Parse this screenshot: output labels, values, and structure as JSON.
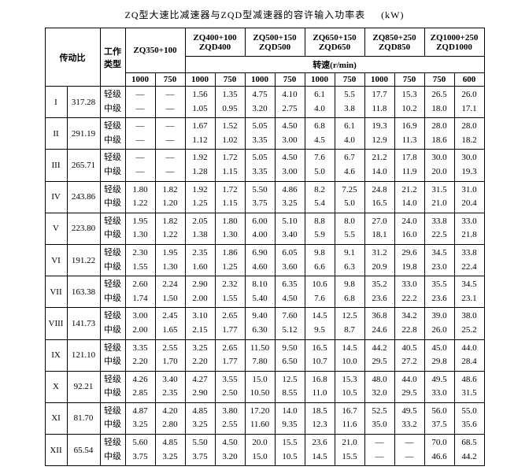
{
  "title": "ZQ型大速比减速器与ZQD型减速器的容许输入功率表",
  "unit_label": "(kW)",
  "headers": {
    "ratio_label": "传动比",
    "work_type": "工作\n类型",
    "models": [
      {
        "id": "m0",
        "top": "ZQ350+100",
        "bottom": ""
      },
      {
        "id": "m1",
        "top": "ZQ400+100",
        "bottom": "ZQD400"
      },
      {
        "id": "m2",
        "top": "ZQ500+150",
        "bottom": "ZQD500"
      },
      {
        "id": "m3",
        "top": "ZQ650+150",
        "bottom": "ZQD650"
      },
      {
        "id": "m4",
        "top": "ZQ850+250",
        "bottom": "ZQD850"
      },
      {
        "id": "m5",
        "top": "ZQ1000+250",
        "bottom": "ZQD1000"
      }
    ],
    "speed_label": "转速(r/min)",
    "speeds": [
      "1000",
      "750",
      "1000",
      "750",
      "1000",
      "750",
      "1000",
      "750",
      "1000",
      "750",
      "750",
      "600"
    ]
  },
  "work_labels": {
    "light": "轻级",
    "mid": "中级"
  },
  "rows": [
    {
      "rn": "I",
      "ratio": "317.28",
      "light": [
        "—",
        "—",
        "1.56",
        "1.35",
        "4.75",
        "4.10",
        "6.1",
        "5.5",
        "17.7",
        "15.3",
        "26.5",
        "26.0"
      ],
      "mid": [
        "—",
        "—",
        "1.05",
        "0.95",
        "3.20",
        "2.75",
        "4.0",
        "3.8",
        "11.8",
        "10.2",
        "18.0",
        "17.1"
      ]
    },
    {
      "rn": "II",
      "ratio": "291.19",
      "light": [
        "—",
        "—",
        "1.67",
        "1.52",
        "5.05",
        "4.50",
        "6.8",
        "6.1",
        "19.3",
        "16.9",
        "28.0",
        "28.0"
      ],
      "mid": [
        "—",
        "—",
        "1.12",
        "1.02",
        "3.35",
        "3.00",
        "4.5",
        "4.0",
        "12.9",
        "11.3",
        "18.6",
        "18.2"
      ]
    },
    {
      "rn": "III",
      "ratio": "265.71",
      "light": [
        "—",
        "—",
        "1.92",
        "1.72",
        "5.05",
        "4.50",
        "7.6",
        "6.7",
        "21.2",
        "17.8",
        "30.0",
        "30.0"
      ],
      "mid": [
        "—",
        "—",
        "1.28",
        "1.15",
        "3.35",
        "3.00",
        "5.0",
        "4.6",
        "14.0",
        "11.9",
        "20.0",
        "19.3"
      ]
    },
    {
      "rn": "IV",
      "ratio": "243.86",
      "light": [
        "1.80",
        "1.82",
        "1.92",
        "1.72",
        "5.50",
        "4.86",
        "8.2",
        "7.25",
        "24.8",
        "21.2",
        "31.5",
        "31.0"
      ],
      "mid": [
        "1.22",
        "1.20",
        "1.25",
        "1.15",
        "3.75",
        "3.25",
        "5.4",
        "5.0",
        "16.5",
        "14.0",
        "21.0",
        "20.4"
      ]
    },
    {
      "rn": "V",
      "ratio": "223.80",
      "light": [
        "1.95",
        "1.82",
        "2.05",
        "1.80",
        "6.00",
        "5.10",
        "8.8",
        "8.0",
        "27.0",
        "24.0",
        "33.8",
        "33.0"
      ],
      "mid": [
        "1.30",
        "1.22",
        "1.38",
        "1.30",
        "4.00",
        "3.40",
        "5.9",
        "5.5",
        "18.1",
        "16.0",
        "22.5",
        "21.8"
      ]
    },
    {
      "rn": "VI",
      "ratio": "191.22",
      "light": [
        "2.30",
        "1.95",
        "2.35",
        "1.86",
        "6.90",
        "6.05",
        "9.8",
        "9.1",
        "31.2",
        "29.6",
        "34.5",
        "33.8"
      ],
      "mid": [
        "1.55",
        "1.30",
        "1.60",
        "1.25",
        "4.60",
        "3.60",
        "6.6",
        "6.3",
        "20.9",
        "19.8",
        "23.0",
        "22.4"
      ]
    },
    {
      "rn": "VII",
      "ratio": "163.38",
      "light": [
        "2.60",
        "2.24",
        "2.90",
        "2.32",
        "8.10",
        "6.35",
        "10.6",
        "9.8",
        "35.2",
        "33.0",
        "35.5",
        "34.5"
      ],
      "mid": [
        "1.74",
        "1.50",
        "2.00",
        "1.55",
        "5.40",
        "4.50",
        "7.6",
        "6.8",
        "23.6",
        "22.2",
        "23.6",
        "23.1"
      ]
    },
    {
      "rn": "VIII",
      "ratio": "141.73",
      "light": [
        "3.00",
        "2.45",
        "3.10",
        "2.65",
        "9.40",
        "7.60",
        "14.5",
        "12.5",
        "36.8",
        "34.2",
        "39.0",
        "38.0"
      ],
      "mid": [
        "2.00",
        "1.65",
        "2.15",
        "1.77",
        "6.30",
        "5.12",
        "9.5",
        "8.7",
        "24.6",
        "22.8",
        "26.0",
        "25.2"
      ]
    },
    {
      "rn": "IX",
      "ratio": "121.10",
      "light": [
        "3.35",
        "2.55",
        "3.25",
        "2.65",
        "11.50",
        "9.50",
        "16.5",
        "14.5",
        "44.2",
        "40.5",
        "45.0",
        "44.0"
      ],
      "mid": [
        "2.20",
        "1.70",
        "2.20",
        "1.77",
        "7.80",
        "6.50",
        "10.7",
        "10.0",
        "29.5",
        "27.2",
        "29.8",
        "28.4"
      ]
    },
    {
      "rn": "X",
      "ratio": "92.21",
      "light": [
        "4.26",
        "3.40",
        "4.27",
        "3.55",
        "15.0",
        "12.5",
        "16.8",
        "15.3",
        "48.0",
        "44.0",
        "49.5",
        "48.6"
      ],
      "mid": [
        "2.85",
        "2.35",
        "2.90",
        "2.50",
        "10.50",
        "8.55",
        "11.0",
        "10.5",
        "32.0",
        "29.5",
        "33.0",
        "31.5"
      ]
    },
    {
      "rn": "XI",
      "ratio": "81.70",
      "light": [
        "4.87",
        "4.20",
        "4.85",
        "3.80",
        "17.20",
        "14.0",
        "18.5",
        "16.7",
        "52.5",
        "49.5",
        "56.0",
        "55.0"
      ],
      "mid": [
        "3.25",
        "2.80",
        "3.25",
        "2.55",
        "11.60",
        "9.35",
        "12.3",
        "11.6",
        "35.0",
        "33.2",
        "37.5",
        "35.6"
      ]
    },
    {
      "rn": "XII",
      "ratio": "65.54",
      "light": [
        "5.60",
        "4.85",
        "5.50",
        "4.50",
        "20.0",
        "15.5",
        "23.6",
        "21.0",
        "—",
        "—",
        "70.0",
        "68.5"
      ],
      "mid": [
        "3.75",
        "3.25",
        "3.75",
        "3.20",
        "15.0",
        "10.5",
        "14.5",
        "15.5",
        "—",
        "—",
        "46.6",
        "44.2"
      ]
    }
  ]
}
